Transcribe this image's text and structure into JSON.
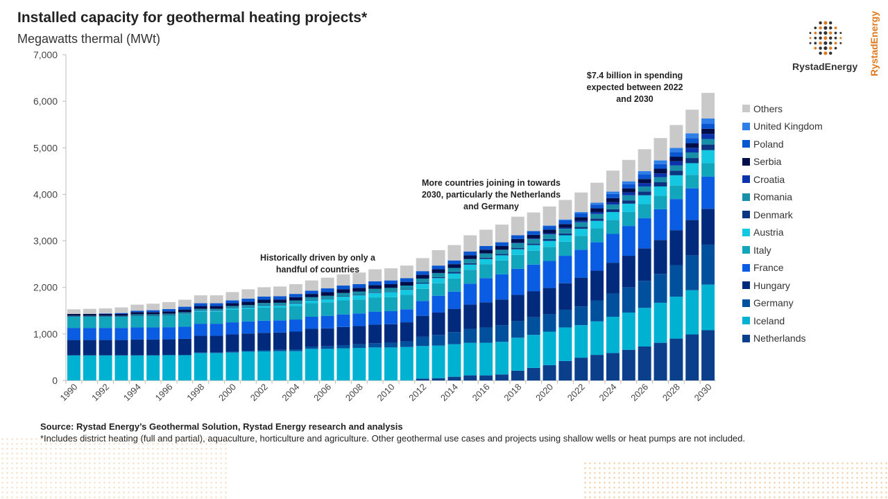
{
  "header": {
    "title": "Installed capacity for geothermal heating projects*",
    "subtitle": "Megawatts thermal (MWt)"
  },
  "brand": {
    "name": "RystadEnergy",
    "vertical": "RystadEnergy"
  },
  "footer": {
    "source": "Source: Rystad Energy’s Geothermal Solution, Rystad Energy research and analysis",
    "note": "*Includes district heating (full and partial), aquaculture, horticulture and agriculture. Other geothermal use cases and projects using shallow wells or heat pumps are not included."
  },
  "chart_data": {
    "type": "bar",
    "stacked": true,
    "title": "Installed capacity for geothermal heating projects*",
    "ylabel": "Megawatts thermal (MWt)",
    "ylim": [
      0,
      7000
    ],
    "yticks": [
      "0",
      "1,000",
      "2,000",
      "3,000",
      "4,000",
      "5,000",
      "6,000",
      "7,000"
    ],
    "categories": [
      1990,
      1991,
      1992,
      1993,
      1994,
      1995,
      1996,
      1997,
      1998,
      1999,
      2000,
      2001,
      2002,
      2003,
      2004,
      2005,
      2006,
      2007,
      2008,
      2009,
      2010,
      2011,
      2012,
      2013,
      2014,
      2015,
      2016,
      2017,
      2018,
      2019,
      2020,
      2021,
      2022,
      2023,
      2024,
      2025,
      2026,
      2027,
      2028,
      2029,
      2030
    ],
    "legend_position": "right",
    "annotations": [
      {
        "text": "Historically driven by only a handful of countries",
        "year": 2005
      },
      {
        "text": "More countries joining in towards 2030, particularly the Netherlands and Germany",
        "year": 2015
      },
      {
        "text": "$7.4 billion in spending expected between 2022 and 2030",
        "year": 2026
      }
    ],
    "series": [
      {
        "name": "Netherlands",
        "color": "#0b3f8c",
        "values": [
          0,
          0,
          0,
          0,
          0,
          0,
          0,
          0,
          0,
          0,
          0,
          0,
          0,
          0,
          0,
          0,
          0,
          0,
          0,
          0,
          0,
          0,
          40,
          50,
          80,
          110,
          110,
          130,
          210,
          270,
          330,
          420,
          490,
          550,
          590,
          660,
          730,
          810,
          900,
          990,
          1080
        ]
      },
      {
        "name": "Iceland",
        "color": "#00b2d2",
        "values": [
          540,
          540,
          540,
          540,
          540,
          540,
          545,
          545,
          590,
          590,
          600,
          620,
          625,
          630,
          630,
          680,
          680,
          690,
          700,
          710,
          710,
          720,
          700,
          700,
          700,
          700,
          700,
          700,
          710,
          710,
          720,
          720,
          700,
          720,
          780,
          800,
          830,
          860,
          900,
          950,
          980
        ]
      },
      {
        "name": "Germany",
        "color": "#00509e",
        "values": [
          0,
          0,
          0,
          0,
          0,
          0,
          0,
          0,
          10,
          10,
          20,
          20,
          30,
          30,
          40,
          50,
          60,
          70,
          80,
          90,
          100,
          120,
          200,
          230,
          260,
          300,
          330,
          360,
          360,
          380,
          380,
          380,
          400,
          450,
          500,
          540,
          580,
          620,
          680,
          750,
          860
        ]
      },
      {
        "name": "Hungary",
        "color": "#022a7c",
        "values": [
          330,
          330,
          330,
          330,
          340,
          340,
          340,
          350,
          360,
          360,
          370,
          370,
          370,
          370,
          380,
          380,
          380,
          390,
          390,
          400,
          400,
          410,
          450,
          480,
          500,
          520,
          540,
          550,
          560,
          560,
          560,
          570,
          620,
          640,
          660,
          680,
          700,
          730,
          750,
          760,
          770
        ]
      },
      {
        "name": "France",
        "color": "#0a5ce2",
        "values": [
          260,
          260,
          260,
          260,
          260,
          260,
          260,
          260,
          260,
          260,
          260,
          260,
          260,
          260,
          260,
          260,
          270,
          270,
          270,
          280,
          280,
          280,
          320,
          360,
          370,
          450,
          520,
          540,
          560,
          570,
          580,
          590,
          600,
          610,
          620,
          640,
          650,
          660,
          670,
          680,
          690
        ]
      },
      {
        "name": "Italy",
        "color": "#12a6bd",
        "values": [
          240,
          240,
          240,
          240,
          250,
          250,
          260,
          260,
          260,
          260,
          270,
          270,
          280,
          280,
          290,
          290,
          290,
          300,
          300,
          300,
          300,
          310,
          260,
          270,
          280,
          300,
          300,
          300,
          300,
          300,
          300,
          300,
          300,
          300,
          300,
          300,
          300,
          290,
          290,
          290,
          290
        ]
      },
      {
        "name": "Austria",
        "color": "#14c8e2",
        "values": [
          0,
          0,
          0,
          0,
          0,
          0,
          0,
          10,
          20,
          20,
          30,
          30,
          40,
          40,
          50,
          60,
          70,
          80,
          90,
          100,
          110,
          110,
          110,
          110,
          110,
          110,
          110,
          110,
          120,
          120,
          130,
          140,
          150,
          160,
          170,
          180,
          190,
          200,
          220,
          250,
          280
        ]
      },
      {
        "name": "Denmark",
        "color": "#0b3580",
        "values": [
          10,
          10,
          10,
          10,
          10,
          10,
          10,
          10,
          10,
          10,
          10,
          10,
          10,
          10,
          10,
          10,
          10,
          10,
          10,
          10,
          10,
          10,
          20,
          20,
          30,
          30,
          30,
          30,
          30,
          30,
          40,
          40,
          40,
          50,
          60,
          70,
          80,
          90,
          100,
          110,
          120
        ]
      },
      {
        "name": "Romania",
        "color": "#178fa8",
        "values": [
          10,
          10,
          10,
          10,
          20,
          20,
          20,
          30,
          30,
          30,
          40,
          40,
          50,
          50,
          60,
          60,
          60,
          70,
          70,
          80,
          80,
          80,
          90,
          90,
          90,
          90,
          90,
          90,
          100,
          100,
          100,
          100,
          100,
          100,
          100,
          110,
          110,
          110,
          110,
          120,
          120
        ]
      },
      {
        "name": "Croatia",
        "color": "#0a32aa",
        "values": [
          0,
          0,
          0,
          0,
          0,
          0,
          0,
          0,
          0,
          0,
          0,
          0,
          0,
          0,
          0,
          0,
          0,
          0,
          0,
          0,
          0,
          0,
          0,
          0,
          0,
          0,
          0,
          0,
          10,
          10,
          20,
          20,
          30,
          40,
          50,
          60,
          70,
          80,
          90,
          100,
          110
        ]
      },
      {
        "name": "Serbia",
        "color": "#000f4a",
        "values": [
          40,
          40,
          40,
          40,
          50,
          50,
          50,
          60,
          60,
          60,
          60,
          70,
          70,
          70,
          70,
          70,
          80,
          80,
          80,
          80,
          80,
          80,
          80,
          80,
          80,
          80,
          80,
          80,
          80,
          80,
          80,
          80,
          80,
          80,
          90,
          90,
          90,
          100,
          100,
          100,
          110
        ]
      },
      {
        "name": "Poland",
        "color": "#0a55d0",
        "values": [
          0,
          0,
          10,
          20,
          30,
          40,
          50,
          60,
          60,
          60,
          60,
          70,
          70,
          70,
          70,
          70,
          80,
          80,
          80,
          80,
          80,
          80,
          80,
          80,
          80,
          80,
          80,
          80,
          80,
          80,
          80,
          80,
          80,
          80,
          90,
          90,
          100,
          100,
          100,
          110,
          110
        ]
      },
      {
        "name": "United Kingdom",
        "color": "#2f7fe8",
        "values": [
          0,
          0,
          0,
          0,
          0,
          0,
          0,
          0,
          0,
          0,
          0,
          0,
          0,
          0,
          0,
          0,
          0,
          0,
          0,
          0,
          0,
          0,
          0,
          0,
          0,
          0,
          0,
          0,
          0,
          0,
          10,
          20,
          30,
          40,
          50,
          60,
          70,
          80,
          90,
          100,
          110
        ]
      },
      {
        "name": "Others",
        "color": "#c9c9c9",
        "values": [
          100,
          110,
          110,
          120,
          130,
          140,
          150,
          150,
          170,
          170,
          180,
          200,
          200,
          210,
          210,
          220,
          230,
          240,
          250,
          260,
          260,
          270,
          280,
          330,
          330,
          350,
          350,
          380,
          400,
          400,
          410,
          420,
          420,
          430,
          450,
          460,
          470,
          480,
          490,
          510,
          550
        ]
      }
    ]
  }
}
